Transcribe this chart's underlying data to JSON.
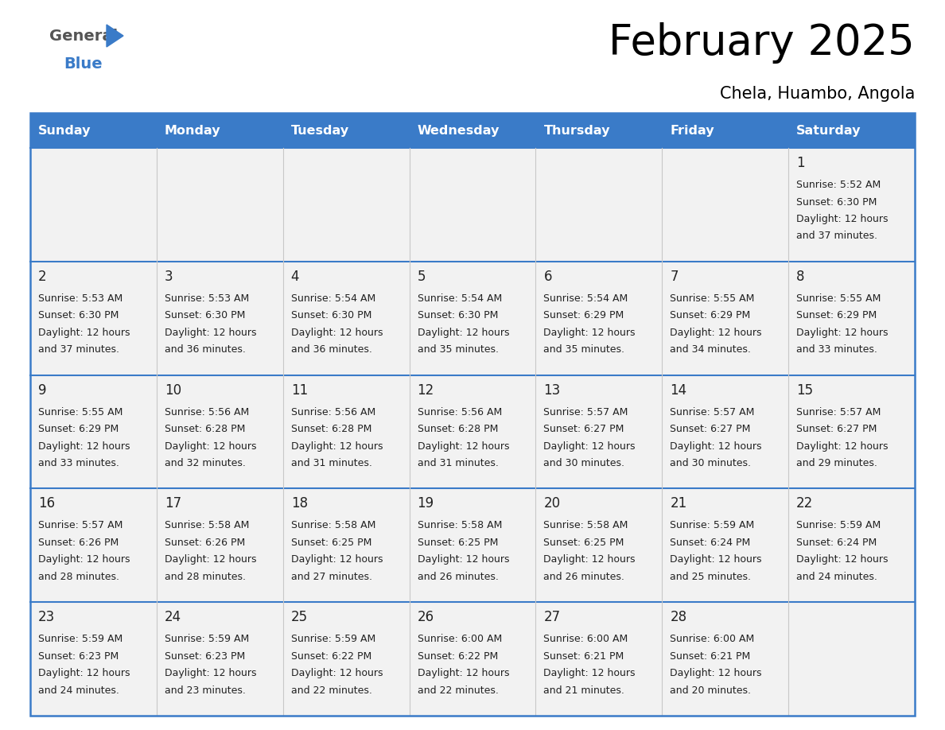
{
  "title": "February 2025",
  "subtitle": "Chela, Huambo, Angola",
  "header_color": "#3a7bc8",
  "header_text_color": "#ffffff",
  "cell_bg_light": "#f2f2f2",
  "border_color": "#3a7bc8",
  "text_color": "#222222",
  "days_of_week": [
    "Sunday",
    "Monday",
    "Tuesday",
    "Wednesday",
    "Thursday",
    "Friday",
    "Saturday"
  ],
  "weeks": [
    [
      {
        "day": null,
        "sunrise": null,
        "sunset": null,
        "daylight": null
      },
      {
        "day": null,
        "sunrise": null,
        "sunset": null,
        "daylight": null
      },
      {
        "day": null,
        "sunrise": null,
        "sunset": null,
        "daylight": null
      },
      {
        "day": null,
        "sunrise": null,
        "sunset": null,
        "daylight": null
      },
      {
        "day": null,
        "sunrise": null,
        "sunset": null,
        "daylight": null
      },
      {
        "day": null,
        "sunrise": null,
        "sunset": null,
        "daylight": null
      },
      {
        "day": 1,
        "sunrise": "5:52 AM",
        "sunset": "6:30 PM",
        "daylight": "12 hours and 37 minutes."
      }
    ],
    [
      {
        "day": 2,
        "sunrise": "5:53 AM",
        "sunset": "6:30 PM",
        "daylight": "12 hours and 37 minutes."
      },
      {
        "day": 3,
        "sunrise": "5:53 AM",
        "sunset": "6:30 PM",
        "daylight": "12 hours and 36 minutes."
      },
      {
        "day": 4,
        "sunrise": "5:54 AM",
        "sunset": "6:30 PM",
        "daylight": "12 hours and 36 minutes."
      },
      {
        "day": 5,
        "sunrise": "5:54 AM",
        "sunset": "6:30 PM",
        "daylight": "12 hours and 35 minutes."
      },
      {
        "day": 6,
        "sunrise": "5:54 AM",
        "sunset": "6:29 PM",
        "daylight": "12 hours and 35 minutes."
      },
      {
        "day": 7,
        "sunrise": "5:55 AM",
        "sunset": "6:29 PM",
        "daylight": "12 hours and 34 minutes."
      },
      {
        "day": 8,
        "sunrise": "5:55 AM",
        "sunset": "6:29 PM",
        "daylight": "12 hours and 33 minutes."
      }
    ],
    [
      {
        "day": 9,
        "sunrise": "5:55 AM",
        "sunset": "6:29 PM",
        "daylight": "12 hours and 33 minutes."
      },
      {
        "day": 10,
        "sunrise": "5:56 AM",
        "sunset": "6:28 PM",
        "daylight": "12 hours and 32 minutes."
      },
      {
        "day": 11,
        "sunrise": "5:56 AM",
        "sunset": "6:28 PM",
        "daylight": "12 hours and 31 minutes."
      },
      {
        "day": 12,
        "sunrise": "5:56 AM",
        "sunset": "6:28 PM",
        "daylight": "12 hours and 31 minutes."
      },
      {
        "day": 13,
        "sunrise": "5:57 AM",
        "sunset": "6:27 PM",
        "daylight": "12 hours and 30 minutes."
      },
      {
        "day": 14,
        "sunrise": "5:57 AM",
        "sunset": "6:27 PM",
        "daylight": "12 hours and 30 minutes."
      },
      {
        "day": 15,
        "sunrise": "5:57 AM",
        "sunset": "6:27 PM",
        "daylight": "12 hours and 29 minutes."
      }
    ],
    [
      {
        "day": 16,
        "sunrise": "5:57 AM",
        "sunset": "6:26 PM",
        "daylight": "12 hours and 28 minutes."
      },
      {
        "day": 17,
        "sunrise": "5:58 AM",
        "sunset": "6:26 PM",
        "daylight": "12 hours and 28 minutes."
      },
      {
        "day": 18,
        "sunrise": "5:58 AM",
        "sunset": "6:25 PM",
        "daylight": "12 hours and 27 minutes."
      },
      {
        "day": 19,
        "sunrise": "5:58 AM",
        "sunset": "6:25 PM",
        "daylight": "12 hours and 26 minutes."
      },
      {
        "day": 20,
        "sunrise": "5:58 AM",
        "sunset": "6:25 PM",
        "daylight": "12 hours and 26 minutes."
      },
      {
        "day": 21,
        "sunrise": "5:59 AM",
        "sunset": "6:24 PM",
        "daylight": "12 hours and 25 minutes."
      },
      {
        "day": 22,
        "sunrise": "5:59 AM",
        "sunset": "6:24 PM",
        "daylight": "12 hours and 24 minutes."
      }
    ],
    [
      {
        "day": 23,
        "sunrise": "5:59 AM",
        "sunset": "6:23 PM",
        "daylight": "12 hours and 24 minutes."
      },
      {
        "day": 24,
        "sunrise": "5:59 AM",
        "sunset": "6:23 PM",
        "daylight": "12 hours and 23 minutes."
      },
      {
        "day": 25,
        "sunrise": "5:59 AM",
        "sunset": "6:22 PM",
        "daylight": "12 hours and 22 minutes."
      },
      {
        "day": 26,
        "sunrise": "6:00 AM",
        "sunset": "6:22 PM",
        "daylight": "12 hours and 22 minutes."
      },
      {
        "day": 27,
        "sunrise": "6:00 AM",
        "sunset": "6:21 PM",
        "daylight": "12 hours and 21 minutes."
      },
      {
        "day": 28,
        "sunrise": "6:00 AM",
        "sunset": "6:21 PM",
        "daylight": "12 hours and 20 minutes."
      },
      {
        "day": null,
        "sunrise": null,
        "sunset": null,
        "daylight": null
      }
    ]
  ],
  "fig_width": 11.88,
  "fig_height": 9.18,
  "dpi": 100
}
